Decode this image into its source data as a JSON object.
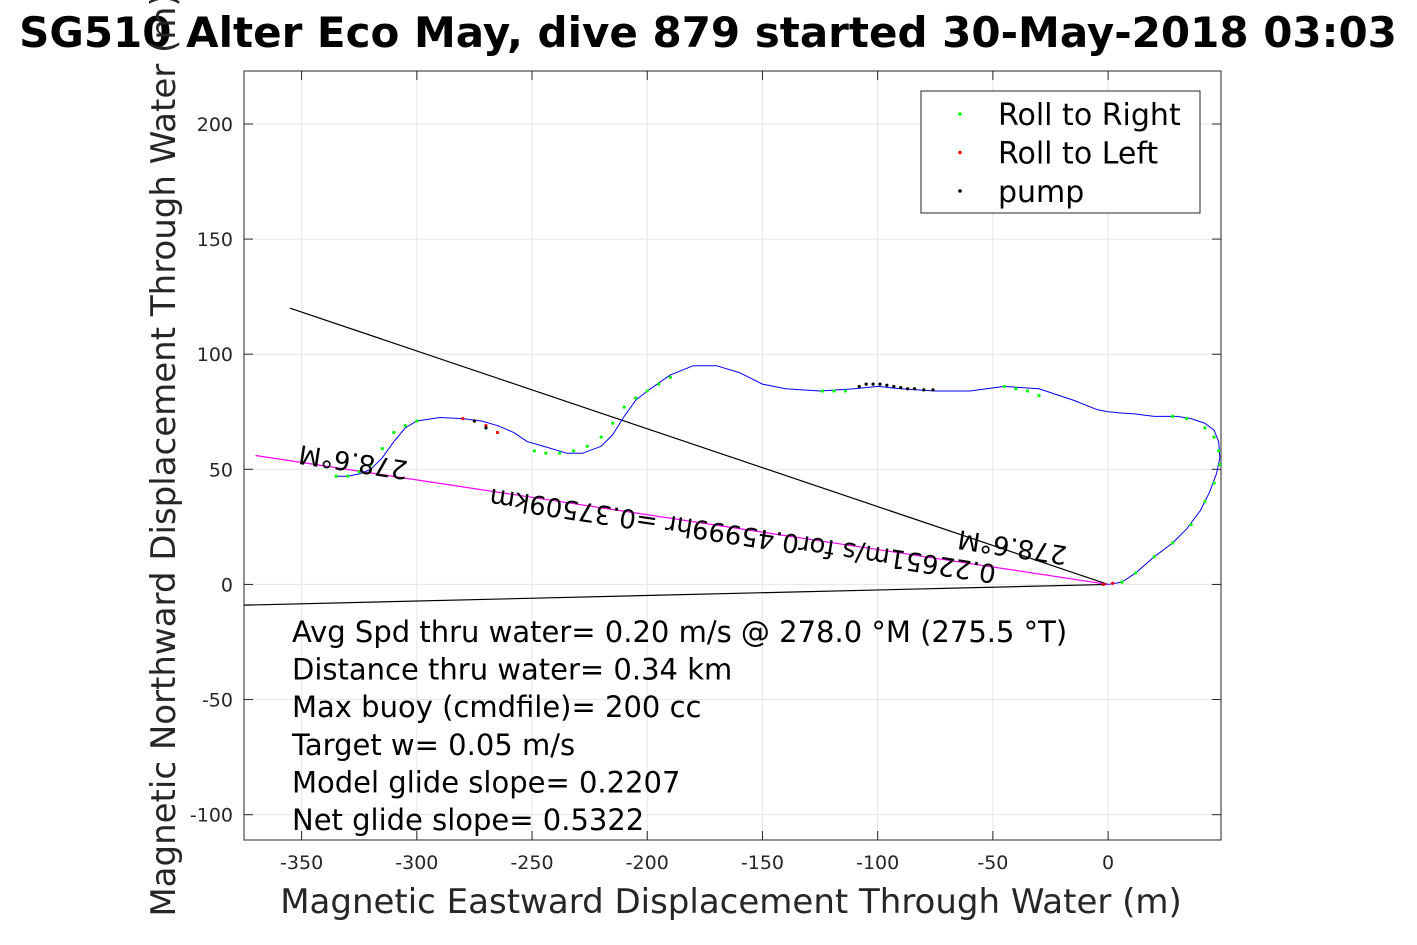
{
  "chart_data": {
    "type": "line",
    "title": "SG510 Alter Eco May, dive 879 started 30-May-2018 03:03",
    "xlabel": "Magnetic Eastward Displacement Through Water (m)",
    "ylabel": "Magnetic Northward Displacement Through Water (m)",
    "xlim": [
      -375,
      49
    ],
    "ylim": [
      -111,
      223
    ],
    "xticks": [
      -350,
      -300,
      -250,
      -200,
      -150,
      -100,
      -50,
      0
    ],
    "yticks": [
      -100,
      -50,
      0,
      50,
      100,
      150,
      200
    ],
    "grid": true,
    "legend": {
      "placement": "top-right",
      "entries": [
        {
          "label": "Roll to Right",
          "color": "#00ff00"
        },
        {
          "label": "Roll to Left",
          "color": "#ff0000"
        },
        {
          "label": "pump",
          "color": "#000000"
        }
      ]
    },
    "track": {
      "color": "#0000ff",
      "x": [
        0,
        6,
        12,
        20,
        28,
        34,
        40,
        44,
        47,
        48.5,
        48,
        46,
        42,
        36,
        30,
        24,
        20,
        12,
        5,
        0,
        -5,
        -15,
        -30,
        -45,
        -60,
        -75,
        -90,
        -100,
        -110,
        -125,
        -140,
        -150,
        -160,
        -170,
        -180,
        -190,
        -200,
        -205,
        -210,
        -215,
        -220,
        -228,
        -235,
        -245,
        -252,
        -258,
        -265,
        -272,
        -280,
        -290,
        -300,
        -305,
        -310,
        -315,
        -320,
        -325,
        -330,
        -335
      ],
      "y": [
        0,
        1,
        5,
        12,
        18,
        24,
        32,
        40,
        48,
        55,
        62,
        67,
        70,
        72,
        73,
        73,
        73,
        74,
        74.5,
        75,
        76,
        80,
        85,
        86,
        84,
        84,
        85,
        86,
        85,
        84,
        85,
        87,
        92,
        95,
        95,
        91,
        84,
        80,
        73,
        65,
        60,
        57,
        57,
        60,
        62,
        66,
        69,
        71,
        72,
        72.5,
        71,
        68,
        62,
        55,
        50,
        48,
        47,
        47
      ]
    },
    "roll_right_points": {
      "color": "#00ff00",
      "x": [
        6,
        12,
        20,
        28,
        36,
        42,
        46,
        48.5,
        48,
        46,
        42,
        34,
        28,
        -45,
        -40,
        -35,
        -30,
        -114,
        -119,
        -124,
        -190,
        -195,
        -200,
        -205,
        -210,
        -215,
        -220,
        -226,
        -232,
        -238,
        -244,
        -249,
        -300,
        -305,
        -310,
        -315,
        -320,
        -325,
        -330,
        -335
      ],
      "y": [
        1,
        5,
        12,
        18,
        26,
        36,
        44,
        52,
        58,
        64,
        68,
        72,
        73,
        86,
        85,
        84,
        82,
        84,
        84,
        84,
        90,
        87,
        84,
        81,
        77,
        70,
        64,
        60,
        58,
        57,
        57,
        58,
        71,
        69,
        66,
        59,
        52,
        49,
        47,
        47
      ]
    },
    "roll_left_points": {
      "color": "#ff0000",
      "x": [
        -2,
        2,
        -280,
        -275,
        -270,
        -265
      ],
      "y": [
        0,
        0.5,
        72,
        71,
        69,
        66
      ]
    },
    "pump_points": {
      "color": "#000000",
      "x": [
        -108,
        -105,
        -102,
        -99,
        -96,
        -93,
        -90,
        -87,
        -84,
        -80,
        -76,
        -275,
        -270
      ],
      "y": [
        86,
        87,
        87,
        87,
        86.5,
        86,
        85.5,
        85,
        85,
        84.5,
        84.5,
        71,
        68
      ]
    },
    "reference_lines": [
      {
        "name": "heading-line-upper",
        "color": "#000000",
        "x": [
          0,
          -355
        ],
        "y": [
          0,
          120
        ]
      },
      {
        "name": "heading-line-lower",
        "color": "#000000",
        "x": [
          0,
          -375
        ],
        "y": [
          0,
          -9
        ]
      },
      {
        "name": "net-displacement-line",
        "color": "#ff00ff",
        "x": [
          0,
          -370
        ],
        "y": [
          0,
          56
        ]
      }
    ],
    "annotations": [
      {
        "text": "278.6°M",
        "x": -327,
        "y": 57,
        "rotation": 188.6
      },
      {
        "text": "0.22651m/s for0.45999hr =0.37509km",
        "x": -158,
        "y": 25,
        "rotation": 188.6
      },
      {
        "text": "278.6°M",
        "x": -41,
        "y": 20,
        "rotation": 188.6
      }
    ],
    "stats": [
      "Avg Spd thru water=  0.20 m/s @ 278.0 °M (275.5 °T)",
      "Distance thru water=  0.34 km",
      "Max buoy (cmdfile)= 200 cc",
      "Target w= 0.05 m/s",
      "Model glide slope= 0.2207",
      "Net glide slope= 0.5322"
    ]
  }
}
